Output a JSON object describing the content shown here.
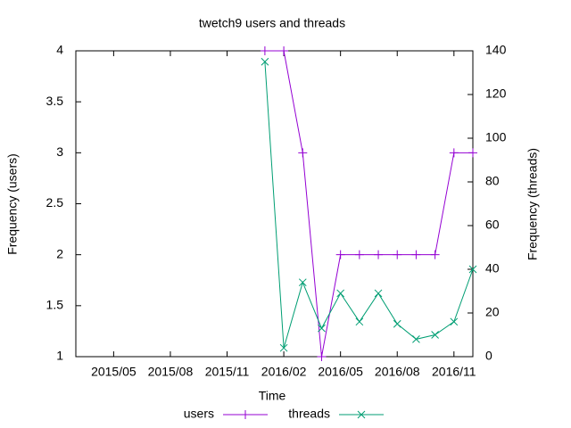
{
  "chart_data": {
    "type": "line",
    "title": "twetch9 users and threads",
    "x_label": "Time",
    "y_label": "Frequency (users)",
    "y2_label": "Frequency (threads)",
    "x": [
      "2016/01",
      "2016/02",
      "2016/03",
      "2016/04",
      "2016/05",
      "2016/06",
      "2016/07",
      "2016/08",
      "2016/09",
      "2016/10",
      "2016/11",
      "2016/12"
    ],
    "series": [
      {
        "name": "users",
        "color": "#9400d3",
        "marker": "+",
        "values": [
          4,
          4,
          3,
          1,
          2,
          2,
          2,
          2,
          2,
          2,
          3,
          3
        ]
      },
      {
        "name": "threads",
        "color": "#009e73",
        "marker": "x",
        "axis": "y2",
        "values": [
          135,
          4,
          34,
          13,
          29,
          16,
          29,
          15,
          8,
          10,
          16,
          40
        ]
      }
    ],
    "xlim": [
      "2015/03",
      "2016/12"
    ],
    "xticks": [
      "2015/05",
      "2015/08",
      "2015/11",
      "2016/02",
      "2016/05",
      "2016/08",
      "2016/11"
    ],
    "ylim": [
      1,
      4
    ],
    "yticks": [
      1,
      1.5,
      2,
      2.5,
      3,
      3.5,
      4
    ],
    "y2lim": [
      0,
      140
    ],
    "y2ticks": [
      0,
      20,
      40,
      60,
      80,
      100,
      120,
      140
    ],
    "legend": "bottom",
    "grid": false
  }
}
